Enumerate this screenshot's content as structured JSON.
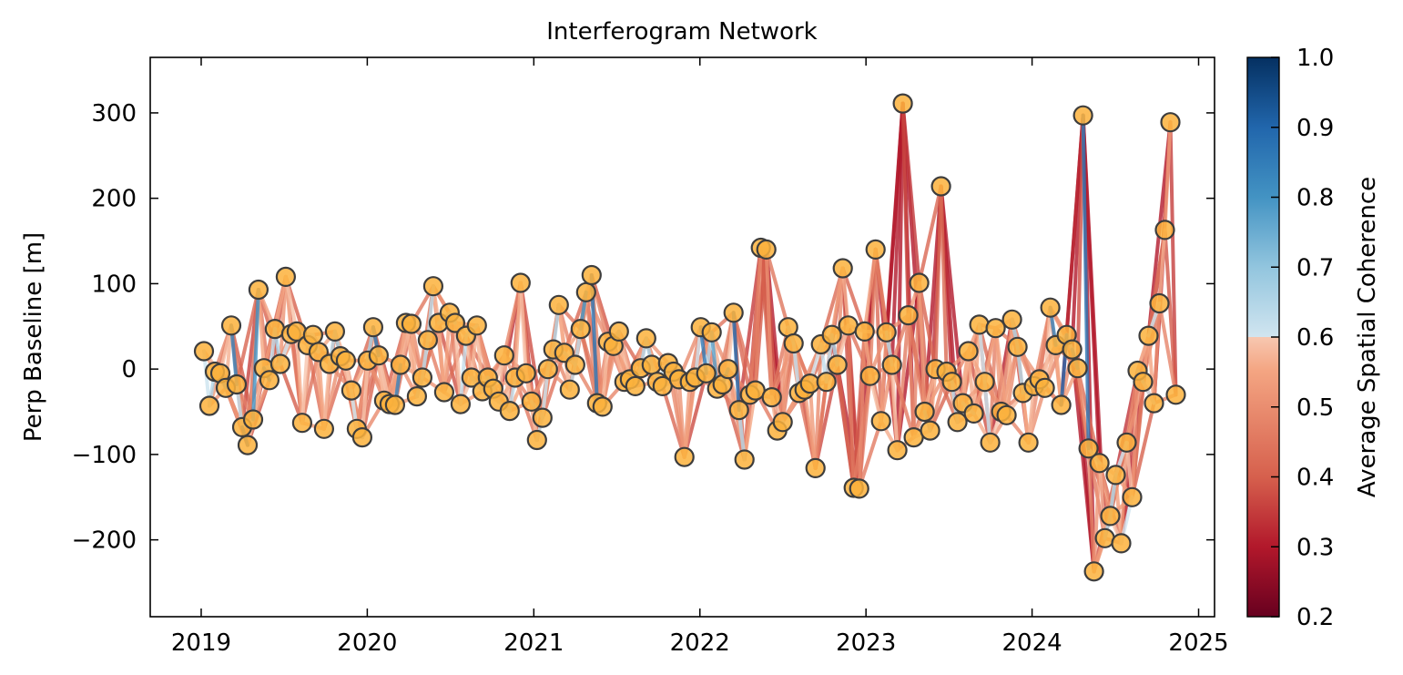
{
  "chart_data": {
    "type": "line",
    "title": "Interferogram Network",
    "xlabel": "",
    "ylabel": "Perp Baseline [m]",
    "x_ticks": [
      "2019",
      "2020",
      "2021",
      "2022",
      "2023",
      "2024",
      "2025"
    ],
    "y_ticks": [
      "−200",
      "−100",
      "0",
      "100",
      "200",
      "300"
    ],
    "y_tick_values": [
      -200,
      -100,
      0,
      100,
      200,
      300
    ],
    "xlim": [
      "2018-09-11",
      "2025-02-05"
    ],
    "ylim": [
      -290,
      365
    ],
    "colorbar": {
      "label": "Average Spatial Coherence",
      "range": [
        0.2,
        1.0
      ],
      "ticks": [
        "0.2",
        "0.3",
        "0.4",
        "0.5",
        "0.6",
        "0.7",
        "0.8",
        "0.9",
        "1.0"
      ],
      "tick_values": [
        0.2,
        0.3,
        0.4,
        0.5,
        0.6,
        0.7,
        0.8,
        0.9,
        1.0
      ],
      "colormap": "RdBu",
      "low_color": "#67001f",
      "mid_color": "#f7f7f7",
      "high_color": "#053061"
    },
    "node_style": {
      "fill": "#fbb13c",
      "edge": "#3d3d3d"
    },
    "acquisitions": [
      {
        "date": "2019-01-07",
        "bperp": 21
      },
      {
        "date": "2019-01-19",
        "bperp": -43
      },
      {
        "date": "2019-01-31",
        "bperp": -3
      },
      {
        "date": "2019-02-12",
        "bperp": -5
      },
      {
        "date": "2019-02-24",
        "bperp": -22
      },
      {
        "date": "2019-03-08",
        "bperp": 51
      },
      {
        "date": "2019-03-20",
        "bperp": -18
      },
      {
        "date": "2019-04-01",
        "bperp": -68
      },
      {
        "date": "2019-04-13",
        "bperp": -89
      },
      {
        "date": "2019-04-25",
        "bperp": -59
      },
      {
        "date": "2019-05-07",
        "bperp": 93
      },
      {
        "date": "2019-05-19",
        "bperp": 1
      },
      {
        "date": "2019-05-31",
        "bperp": -13
      },
      {
        "date": "2019-06-12",
        "bperp": 47
      },
      {
        "date": "2019-06-24",
        "bperp": 6
      },
      {
        "date": "2019-07-06",
        "bperp": 108
      },
      {
        "date": "2019-07-18",
        "bperp": 41
      },
      {
        "date": "2019-07-30",
        "bperp": 44
      },
      {
        "date": "2019-08-11",
        "bperp": -63
      },
      {
        "date": "2019-08-23",
        "bperp": 28
      },
      {
        "date": "2019-09-04",
        "bperp": 40
      },
      {
        "date": "2019-09-16",
        "bperp": 20
      },
      {
        "date": "2019-09-28",
        "bperp": -70
      },
      {
        "date": "2019-10-10",
        "bperp": 6
      },
      {
        "date": "2019-10-22",
        "bperp": 44
      },
      {
        "date": "2019-11-03",
        "bperp": 15
      },
      {
        "date": "2019-11-15",
        "bperp": 10
      },
      {
        "date": "2019-11-27",
        "bperp": -25
      },
      {
        "date": "2019-12-09",
        "bperp": -70
      },
      {
        "date": "2019-12-21",
        "bperp": -80
      },
      {
        "date": "2020-01-02",
        "bperp": 10
      },
      {
        "date": "2020-01-14",
        "bperp": 49
      },
      {
        "date": "2020-01-26",
        "bperp": 16
      },
      {
        "date": "2020-02-07",
        "bperp": -37
      },
      {
        "date": "2020-02-19",
        "bperp": -41
      },
      {
        "date": "2020-03-02",
        "bperp": -42
      },
      {
        "date": "2020-03-14",
        "bperp": 5
      },
      {
        "date": "2020-03-26",
        "bperp": 54
      },
      {
        "date": "2020-04-07",
        "bperp": 53
      },
      {
        "date": "2020-04-19",
        "bperp": -32
      },
      {
        "date": "2020-05-01",
        "bperp": -10
      },
      {
        "date": "2020-05-13",
        "bperp": 34
      },
      {
        "date": "2020-05-25",
        "bperp": 97
      },
      {
        "date": "2020-06-06",
        "bperp": 54
      },
      {
        "date": "2020-06-18",
        "bperp": -27
      },
      {
        "date": "2020-06-30",
        "bperp": 66
      },
      {
        "date": "2020-07-12",
        "bperp": 54
      },
      {
        "date": "2020-07-24",
        "bperp": -41
      },
      {
        "date": "2020-08-05",
        "bperp": 39
      },
      {
        "date": "2020-08-17",
        "bperp": -10
      },
      {
        "date": "2020-08-29",
        "bperp": 51
      },
      {
        "date": "2020-09-10",
        "bperp": -26
      },
      {
        "date": "2020-09-22",
        "bperp": -10
      },
      {
        "date": "2020-10-04",
        "bperp": -23
      },
      {
        "date": "2020-10-16",
        "bperp": -38
      },
      {
        "date": "2020-10-28",
        "bperp": 16
      },
      {
        "date": "2020-11-09",
        "bperp": -49
      },
      {
        "date": "2020-11-21",
        "bperp": -10
      },
      {
        "date": "2020-12-03",
        "bperp": 101
      },
      {
        "date": "2020-12-15",
        "bperp": -5
      },
      {
        "date": "2020-12-27",
        "bperp": -38
      },
      {
        "date": "2021-01-08",
        "bperp": -83
      },
      {
        "date": "2021-01-20",
        "bperp": -57
      },
      {
        "date": "2021-02-01",
        "bperp": 0
      },
      {
        "date": "2021-02-13",
        "bperp": 23
      },
      {
        "date": "2021-02-25",
        "bperp": 75
      },
      {
        "date": "2021-03-09",
        "bperp": 19
      },
      {
        "date": "2021-03-21",
        "bperp": -24
      },
      {
        "date": "2021-04-02",
        "bperp": 5
      },
      {
        "date": "2021-04-14",
        "bperp": 47
      },
      {
        "date": "2021-04-26",
        "bperp": 90
      },
      {
        "date": "2021-05-08",
        "bperp": 110
      },
      {
        "date": "2021-05-20",
        "bperp": -40
      },
      {
        "date": "2021-06-01",
        "bperp": -44
      },
      {
        "date": "2021-06-13",
        "bperp": 32
      },
      {
        "date": "2021-06-25",
        "bperp": 27
      },
      {
        "date": "2021-07-07",
        "bperp": 44
      },
      {
        "date": "2021-07-19",
        "bperp": -15
      },
      {
        "date": "2021-07-31",
        "bperp": -12
      },
      {
        "date": "2021-08-12",
        "bperp": -20
      },
      {
        "date": "2021-08-24",
        "bperp": 1
      },
      {
        "date": "2021-09-05",
        "bperp": 36
      },
      {
        "date": "2021-09-17",
        "bperp": 5
      },
      {
        "date": "2021-09-29",
        "bperp": -15
      },
      {
        "date": "2021-10-11",
        "bperp": -20
      },
      {
        "date": "2021-10-23",
        "bperp": 7
      },
      {
        "date": "2021-11-04",
        "bperp": -3
      },
      {
        "date": "2021-11-16",
        "bperp": -12
      },
      {
        "date": "2021-11-28",
        "bperp": -103
      },
      {
        "date": "2021-12-10",
        "bperp": -15
      },
      {
        "date": "2021-12-22",
        "bperp": -10
      },
      {
        "date": "2022-01-03",
        "bperp": 49
      },
      {
        "date": "2022-01-15",
        "bperp": -5
      },
      {
        "date": "2022-01-27",
        "bperp": 43
      },
      {
        "date": "2022-02-08",
        "bperp": -23
      },
      {
        "date": "2022-02-20",
        "bperp": -18
      },
      {
        "date": "2022-03-04",
        "bperp": 0
      },
      {
        "date": "2022-03-16",
        "bperp": 66
      },
      {
        "date": "2022-03-28",
        "bperp": -48
      },
      {
        "date": "2022-04-09",
        "bperp": -106
      },
      {
        "date": "2022-04-21",
        "bperp": -30
      },
      {
        "date": "2022-05-03",
        "bperp": -25
      },
      {
        "date": "2022-05-15",
        "bperp": 142
      },
      {
        "date": "2022-05-27",
        "bperp": 140
      },
      {
        "date": "2022-06-08",
        "bperp": -33
      },
      {
        "date": "2022-06-20",
        "bperp": -72
      },
      {
        "date": "2022-07-02",
        "bperp": -62
      },
      {
        "date": "2022-07-14",
        "bperp": 49
      },
      {
        "date": "2022-07-26",
        "bperp": 30
      },
      {
        "date": "2022-08-07",
        "bperp": -28
      },
      {
        "date": "2022-08-19",
        "bperp": -24
      },
      {
        "date": "2022-08-31",
        "bperp": -17
      },
      {
        "date": "2022-09-12",
        "bperp": -116
      },
      {
        "date": "2022-09-24",
        "bperp": 29
      },
      {
        "date": "2022-10-06",
        "bperp": -15
      },
      {
        "date": "2022-10-18",
        "bperp": 40
      },
      {
        "date": "2022-10-30",
        "bperp": 5
      },
      {
        "date": "2022-11-11",
        "bperp": 118
      },
      {
        "date": "2022-11-23",
        "bperp": 51
      },
      {
        "date": "2022-12-05",
        "bperp": -139
      },
      {
        "date": "2022-12-17",
        "bperp": -140
      },
      {
        "date": "2022-12-29",
        "bperp": 44
      },
      {
        "date": "2023-01-10",
        "bperp": -8
      },
      {
        "date": "2023-01-22",
        "bperp": 140
      },
      {
        "date": "2023-02-03",
        "bperp": -61
      },
      {
        "date": "2023-02-15",
        "bperp": 43
      },
      {
        "date": "2023-02-27",
        "bperp": 5
      },
      {
        "date": "2023-03-11",
        "bperp": -95
      },
      {
        "date": "2023-03-23",
        "bperp": 311
      },
      {
        "date": "2023-04-04",
        "bperp": 63
      },
      {
        "date": "2023-04-16",
        "bperp": -80
      },
      {
        "date": "2023-04-28",
        "bperp": 101
      },
      {
        "date": "2023-05-10",
        "bperp": -50
      },
      {
        "date": "2023-05-22",
        "bperp": -72
      },
      {
        "date": "2023-06-03",
        "bperp": 0
      },
      {
        "date": "2023-06-15",
        "bperp": 214
      },
      {
        "date": "2023-06-27",
        "bperp": -3
      },
      {
        "date": "2023-07-09",
        "bperp": -15
      },
      {
        "date": "2023-07-21",
        "bperp": -62
      },
      {
        "date": "2023-08-02",
        "bperp": -40
      },
      {
        "date": "2023-08-14",
        "bperp": 21
      },
      {
        "date": "2023-08-26",
        "bperp": -52
      },
      {
        "date": "2023-09-07",
        "bperp": 52
      },
      {
        "date": "2023-09-19",
        "bperp": -15
      },
      {
        "date": "2023-10-01",
        "bperp": -86
      },
      {
        "date": "2023-10-13",
        "bperp": 48
      },
      {
        "date": "2023-10-25",
        "bperp": -50
      },
      {
        "date": "2023-11-06",
        "bperp": -54
      },
      {
        "date": "2023-11-18",
        "bperp": 58
      },
      {
        "date": "2023-11-30",
        "bperp": 26
      },
      {
        "date": "2023-12-12",
        "bperp": -28
      },
      {
        "date": "2023-12-24",
        "bperp": -86
      },
      {
        "date": "2024-01-05",
        "bperp": -20
      },
      {
        "date": "2024-01-17",
        "bperp": -12
      },
      {
        "date": "2024-01-29",
        "bperp": -22
      },
      {
        "date": "2024-02-10",
        "bperp": 72
      },
      {
        "date": "2024-02-22",
        "bperp": 28
      },
      {
        "date": "2024-03-05",
        "bperp": -42
      },
      {
        "date": "2024-03-17",
        "bperp": 40
      },
      {
        "date": "2024-03-29",
        "bperp": 23
      },
      {
        "date": "2024-04-10",
        "bperp": 1
      },
      {
        "date": "2024-04-22",
        "bperp": 297
      },
      {
        "date": "2024-05-04",
        "bperp": -93
      },
      {
        "date": "2024-05-16",
        "bperp": -237
      },
      {
        "date": "2024-05-28",
        "bperp": -110
      },
      {
        "date": "2024-06-09",
        "bperp": -198
      },
      {
        "date": "2024-06-21",
        "bperp": -172
      },
      {
        "date": "2024-07-03",
        "bperp": -124
      },
      {
        "date": "2024-07-15",
        "bperp": -204
      },
      {
        "date": "2024-07-27",
        "bperp": -86
      },
      {
        "date": "2024-08-08",
        "bperp": -150
      },
      {
        "date": "2024-08-20",
        "bperp": -2
      },
      {
        "date": "2024-09-01",
        "bperp": -15
      },
      {
        "date": "2024-09-13",
        "bperp": 39
      },
      {
        "date": "2024-09-25",
        "bperp": -40
      },
      {
        "date": "2024-10-07",
        "bperp": 77
      },
      {
        "date": "2024-10-19",
        "bperp": 163
      },
      {
        "date": "2024-10-31",
        "bperp": 289
      },
      {
        "date": "2024-11-12",
        "bperp": -30
      }
    ]
  }
}
